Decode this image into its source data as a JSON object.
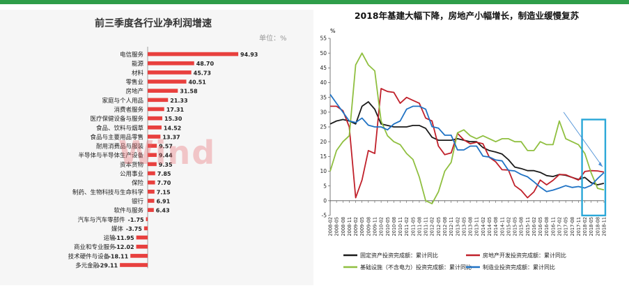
{
  "left_chart": {
    "title": "前三季度各行业净利润增速",
    "unit_note": "单位：%",
    "watermark": "Wind",
    "bar_color": "#e8403e"
  },
  "right_chart": {
    "title": "2018年基建大幅下降，房地产小幅增长，制造业缓慢复苏",
    "y_unit": "%",
    "highlight_color": "#2aa7d8"
  },
  "chart_data": [
    {
      "type": "bar",
      "orientation": "horizontal",
      "title": "前三季度各行业净利润增速",
      "categories": [
        "电信服务",
        "能源",
        "材料",
        "零售业",
        "房地产",
        "家庭与个人用品",
        "消费者服务",
        "医疗保健设备与服务",
        "食品、饮料与烟草",
        "食品与主要用品零售",
        "耐用消费品与服装",
        "半导体与半导体生产设备",
        "资本货物",
        "公用事业",
        "保险",
        "制药、生物科技与生命科学",
        "银行",
        "软件与服务",
        "汽车与汽车零部件",
        "媒体",
        "运输",
        "商业和专业服务",
        "技术硬件与设备",
        "多元金融"
      ],
      "values": [
        94.93,
        48.7,
        45.73,
        40.51,
        31.58,
        21.33,
        17.31,
        15.3,
        14.52,
        13.37,
        9.57,
        9.44,
        9.35,
        7.85,
        7.7,
        7.15,
        6.91,
        6.43,
        -1.75,
        -3.75,
        -11.95,
        -12.02,
        -18.11,
        -29.11
      ],
      "value_labels": [
        "94.93",
        "48.70",
        "45.73",
        "40.51",
        "31.58",
        "21.33",
        "17.31",
        "15.30",
        "14.52",
        "13.37",
        "9.57",
        "9.44",
        "9.35",
        "7.85",
        "7.70",
        "7.15",
        "6.91",
        "6.43",
        "-1.75",
        "-3.75",
        "-11.95",
        "-12.02",
        "-18.11",
        "-29.11"
      ]
    },
    {
      "type": "line",
      "title": "2018年基建大幅下降，房地产小幅增长，制造业缓慢复苏",
      "ylabel": "%",
      "ylim": [
        -5,
        55
      ],
      "yticks": [
        "-5",
        "0",
        "5",
        "10",
        "15",
        "20",
        "25",
        "30",
        "35",
        "40",
        "45",
        "50",
        "55"
      ],
      "x": [
        "2008-02",
        "2008-05",
        "2008-08",
        "2008-11",
        "2009-02",
        "2009-05",
        "2009-08",
        "2009-11",
        "2010-02",
        "2010-05",
        "2010-08",
        "2010-11",
        "2011-02",
        "2011-05",
        "2011-08",
        "2011-11",
        "2012-02",
        "2012-05",
        "2012-08",
        "2012-11",
        "2013-02",
        "2013-05",
        "2013-08",
        "2013-11",
        "2014-02",
        "2014-05",
        "2014-08",
        "2014-11",
        "2015-02",
        "2015-05",
        "2015-08",
        "2015-11",
        "2016-02",
        "2016-05",
        "2016-08",
        "2016-11",
        "2017-02",
        "2017-05",
        "2017-08",
        "2017-11",
        "2018-02",
        "2018-05",
        "2018-08",
        "2018-11"
      ],
      "series": [
        {
          "name": "固定资产投资完成额：累计同比",
          "color": "#1a1a1a",
          "values": [
            26,
            27,
            27.5,
            27,
            26,
            32,
            33.5,
            31,
            26,
            25.5,
            25,
            25,
            25,
            25.5,
            25.5,
            24.5,
            21.5,
            20.5,
            20.5,
            20.5,
            21,
            20.5,
            20,
            20,
            18,
            17,
            16.5,
            15.8,
            13.9,
            11.4,
            10.9,
            10.2,
            10.2,
            9.6,
            8.5,
            8.2,
            8.9,
            8.6,
            7.9,
            7.2,
            7.9,
            6.1,
            5.4,
            5.9
          ]
        },
        {
          "name": "房地产开发投资完成额：累计同比",
          "color": "#c0202a",
          "values": [
            32,
            32,
            30.5,
            25,
            1,
            7,
            17,
            16,
            38,
            37,
            36.7,
            33,
            35,
            34,
            33,
            28,
            27,
            18.5,
            15.6,
            16.2,
            22.8,
            20.6,
            19.3,
            19.8,
            19.3,
            14.7,
            13.2,
            10.5,
            10.4,
            5.1,
            3.5,
            1,
            3,
            7,
            5.4,
            6.9,
            8.9,
            8.8,
            7.9,
            7,
            9.9,
            10.2,
            10.1,
            9.7
          ]
        },
        {
          "name": "基础设施（不含电力）投资完成额：累计同比",
          "color": "#8fbf3f",
          "values": [
            10,
            17,
            20,
            22,
            46,
            50,
            46,
            44,
            27,
            22,
            20,
            19,
            16,
            14,
            8,
            0,
            -1,
            3,
            10,
            13,
            23,
            24,
            22,
            21,
            22,
            21,
            20,
            21,
            21,
            20,
            20,
            17,
            17,
            20,
            19,
            19,
            27,
            21,
            20,
            19,
            16,
            9.4,
            4.2,
            3.7
          ]
        },
        {
          "name": "制造业投资完成额：累计同比",
          "color": "#1f72c4",
          "values": [
            36,
            33,
            30,
            27,
            26.5,
            28,
            25.6,
            25,
            25,
            24,
            26,
            27,
            31,
            32,
            32,
            31,
            25.1,
            24.6,
            22.2,
            22.2,
            17.2,
            17.2,
            18.5,
            18.5,
            15.1,
            14.8,
            13.8,
            13.5,
            10.3,
            10.1,
            8.9,
            8.1,
            6.4,
            4.6,
            3.1,
            3.6,
            4.3,
            5.1,
            4.5,
            4.8,
            4.3,
            5.2,
            7.5,
            9.5
          ]
        }
      ]
    }
  ]
}
